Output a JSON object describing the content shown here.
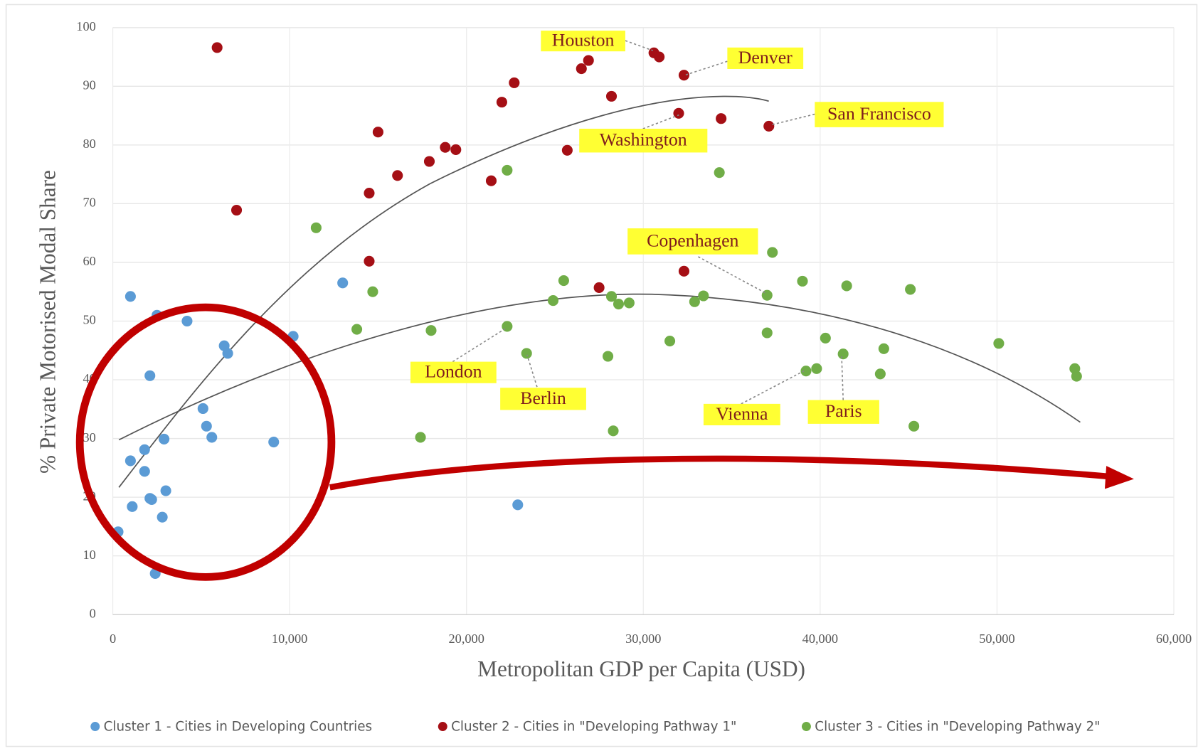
{
  "chart_data": {
    "type": "scatter",
    "x_label": "Metropolitan GDP per Capita (USD)",
    "y_label": "% Private Motorised Modal Share",
    "xlim": [
      0,
      60000
    ],
    "ylim": [
      0,
      100
    ],
    "xticks": [
      0,
      {
        "value": 10000,
        "label": "10,000"
      },
      {
        "value": 20000,
        "label": "20,000"
      },
      {
        "value": 30000,
        "label": "30,000"
      },
      {
        "value": 40000,
        "label": "40,000"
      },
      {
        "value": 50000,
        "label": "50,000"
      },
      {
        "value": 60000,
        "label": "60,000"
      }
    ],
    "yticks": [
      0,
      10,
      20,
      30,
      40,
      50,
      60,
      70,
      80,
      90,
      100
    ],
    "grid": true,
    "legend": "bottom",
    "annotations": [
      "Houston",
      "Denver",
      "San Francisco",
      "Washington",
      "Copenhagen",
      "London",
      "Berlin",
      "Vienna",
      "Paris"
    ],
    "series": [
      {
        "name": "Cluster 1 - Cities in Developing Countries",
        "color": "#5b9bd5",
        "x": [
          1000,
          2500,
          4200,
          2100,
          6300,
          6500,
          5100,
          5300,
          5600,
          2900,
          9100,
          1800,
          1000,
          1800,
          2100,
          2200,
          3000,
          1100,
          2800,
          300,
          2400,
          13000,
          10200,
          22900
        ],
        "y": [
          54.2,
          51,
          50,
          40.7,
          45.8,
          44.5,
          35.1,
          32.1,
          30.2,
          29.9,
          29.4,
          28.1,
          26.2,
          24.4,
          19.8,
          19.6,
          21.1,
          18.4,
          16.6,
          14.1,
          7.0,
          56.5,
          47.4,
          18.7
        ]
      },
      {
        "name": "Cluster 2 - Cities in \"Developing Pathway 1\"",
        "color": "#a50f15",
        "x": [
          5900,
          7000,
          14500,
          14500,
          15000,
          16100,
          17900,
          18800,
          19400,
          21400,
          22000,
          22700,
          25700,
          26500,
          26900,
          28200,
          30600,
          30900,
          32000,
          32300,
          34400,
          37100,
          32300,
          27500
        ],
        "y": [
          96.6,
          68.9,
          71.8,
          60.2,
          82.2,
          74.8,
          77.2,
          79.6,
          79.2,
          73.9,
          87.3,
          90.6,
          79.1,
          93.0,
          94.4,
          88.3,
          95.7,
          95.0,
          85.4,
          91.9,
          84.5,
          83.2,
          58.5,
          55.7
        ]
      },
      {
        "name": "Cluster 3 - Cities in \"Developing Pathway 2\"",
        "color": "#70ad47",
        "x": [
          11500,
          22300,
          34300,
          37300,
          13800,
          14700,
          18000,
          22300,
          23400,
          17400,
          24900,
          25500,
          28000,
          28200,
          28600,
          28300,
          29200,
          31500,
          32900,
          33400,
          37000,
          37000,
          39000,
          39200,
          39800,
          40300,
          41300,
          41500,
          43400,
          43600,
          45100,
          45300,
          50100,
          54400,
          54500
        ],
        "y": [
          65.9,
          75.7,
          75.3,
          61.7,
          48.6,
          55.0,
          48.4,
          49.1,
          44.5,
          30.2,
          53.5,
          56.9,
          44.0,
          54.2,
          52.9,
          31.3,
          53.1,
          46.6,
          53.3,
          54.3,
          54.4,
          48.0,
          56.8,
          41.5,
          41.9,
          47.1,
          44.4,
          56.0,
          41.0,
          45.3,
          55.4,
          32.1,
          46.2,
          41.9,
          40.6
        ]
      }
    ]
  }
}
